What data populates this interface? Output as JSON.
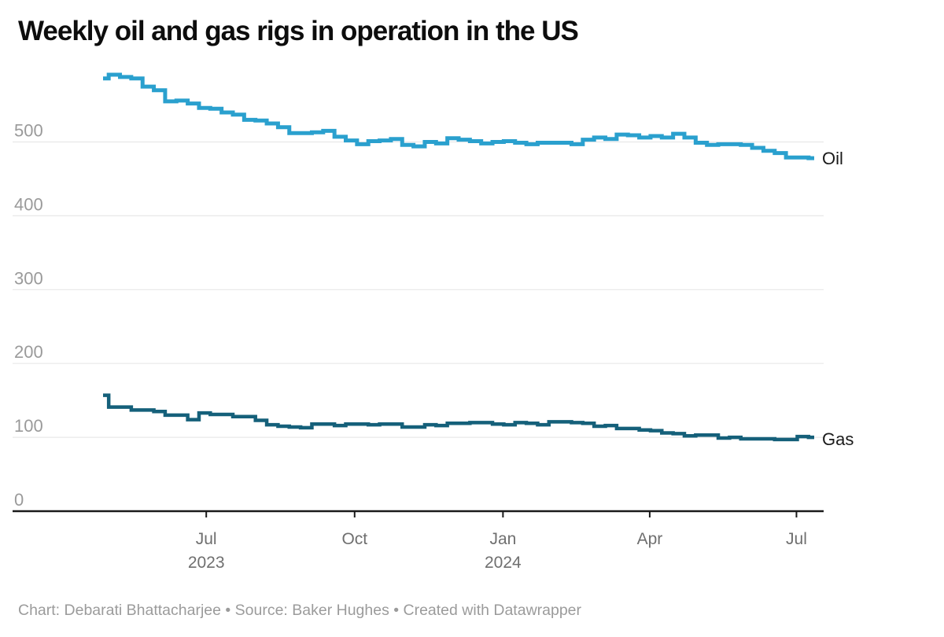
{
  "title": "Weekly oil and gas rigs in operation in the US",
  "footer": "Chart: Debarati Bhattacharjee • Source: Baker Hughes • Created with Datawrapper",
  "colors": {
    "oil_line": "#2aa0ce",
    "gas_line": "#15607a",
    "gridline": "#e8e8e8",
    "baseline": "#1a1a1a",
    "y_tick_label": "#9a9a9a",
    "x_tick_label": "#6f6f6f",
    "title_text": "#0d0d0d",
    "footer_text": "#9b9b9b",
    "series_label_text": "#1a1a1a"
  },
  "chart_data": {
    "type": "line",
    "step_interpolation": true,
    "title": "Weekly oil and gas rigs in operation in the US",
    "xlabel": "",
    "ylabel": "",
    "ylim": [
      0,
      600
    ],
    "yticks": [
      0,
      100,
      200,
      300,
      400,
      500
    ],
    "grid": "horizontal",
    "legend_position": "right-end-of-line",
    "x": [
      "2023-04-28",
      "2023-05-05",
      "2023-05-12",
      "2023-05-19",
      "2023-05-26",
      "2023-06-02",
      "2023-06-09",
      "2023-06-16",
      "2023-06-23",
      "2023-06-30",
      "2023-07-07",
      "2023-07-14",
      "2023-07-21",
      "2023-07-28",
      "2023-08-04",
      "2023-08-11",
      "2023-08-18",
      "2023-08-25",
      "2023-09-01",
      "2023-09-08",
      "2023-09-15",
      "2023-09-22",
      "2023-09-29",
      "2023-10-06",
      "2023-10-13",
      "2023-10-20",
      "2023-10-27",
      "2023-11-03",
      "2023-11-10",
      "2023-11-17",
      "2023-11-24",
      "2023-12-01",
      "2023-12-08",
      "2023-12-15",
      "2023-12-22",
      "2023-12-29",
      "2024-01-05",
      "2024-01-12",
      "2024-01-19",
      "2024-01-26",
      "2024-02-02",
      "2024-02-09",
      "2024-02-16",
      "2024-02-23",
      "2024-03-01",
      "2024-03-08",
      "2024-03-15",
      "2024-03-22",
      "2024-03-29",
      "2024-04-05",
      "2024-04-12",
      "2024-04-19",
      "2024-04-26",
      "2024-05-03",
      "2024-05-10",
      "2024-05-17",
      "2024-05-24",
      "2024-05-31",
      "2024-06-07",
      "2024-06-14",
      "2024-06-21",
      "2024-06-28",
      "2024-07-05",
      "2024-07-12"
    ],
    "series": [
      {
        "name": "Oil",
        "color": "#2aa0ce",
        "values": [
          586,
          591,
          588,
          586,
          575,
          570,
          555,
          556,
          552,
          546,
          545,
          540,
          537,
          530,
          529,
          525,
          520,
          512,
          512,
          513,
          515,
          507,
          502,
          497,
          501,
          502,
          504,
          496,
          494,
          500,
          498,
          505,
          503,
          501,
          498,
          500,
          501,
          499,
          497,
          499,
          499,
          499,
          497,
          503,
          506,
          504,
          510,
          509,
          506,
          508,
          506,
          511,
          506,
          499,
          496,
          497,
          497,
          496,
          492,
          488,
          485,
          479,
          479,
          478
        ]
      },
      {
        "name": "Gas",
        "color": "#15607a",
        "values": [
          157,
          141,
          141,
          137,
          137,
          135,
          130,
          130,
          124,
          133,
          131,
          131,
          128,
          128,
          123,
          117,
          115,
          114,
          113,
          118,
          118,
          116,
          118,
          118,
          117,
          118,
          118,
          114,
          114,
          117,
          116,
          119,
          119,
          120,
          120,
          118,
          117,
          120,
          119,
          117,
          121,
          121,
          120,
          119,
          115,
          116,
          112,
          112,
          110,
          109,
          106,
          105,
          102,
          103,
          103,
          99,
          100,
          98,
          98,
          98,
          97,
          97,
          101,
          100
        ]
      }
    ],
    "xticks": [
      {
        "label": "Jul",
        "year": "2023",
        "date": "2023-07-01"
      },
      {
        "label": "Oct",
        "year": "",
        "date": "2023-10-01"
      },
      {
        "label": "Jan",
        "year": "2024",
        "date": "2024-01-01"
      },
      {
        "label": "Apr",
        "year": "",
        "date": "2024-04-01"
      },
      {
        "label": "Jul",
        "year": "",
        "date": "2024-07-01"
      }
    ]
  }
}
